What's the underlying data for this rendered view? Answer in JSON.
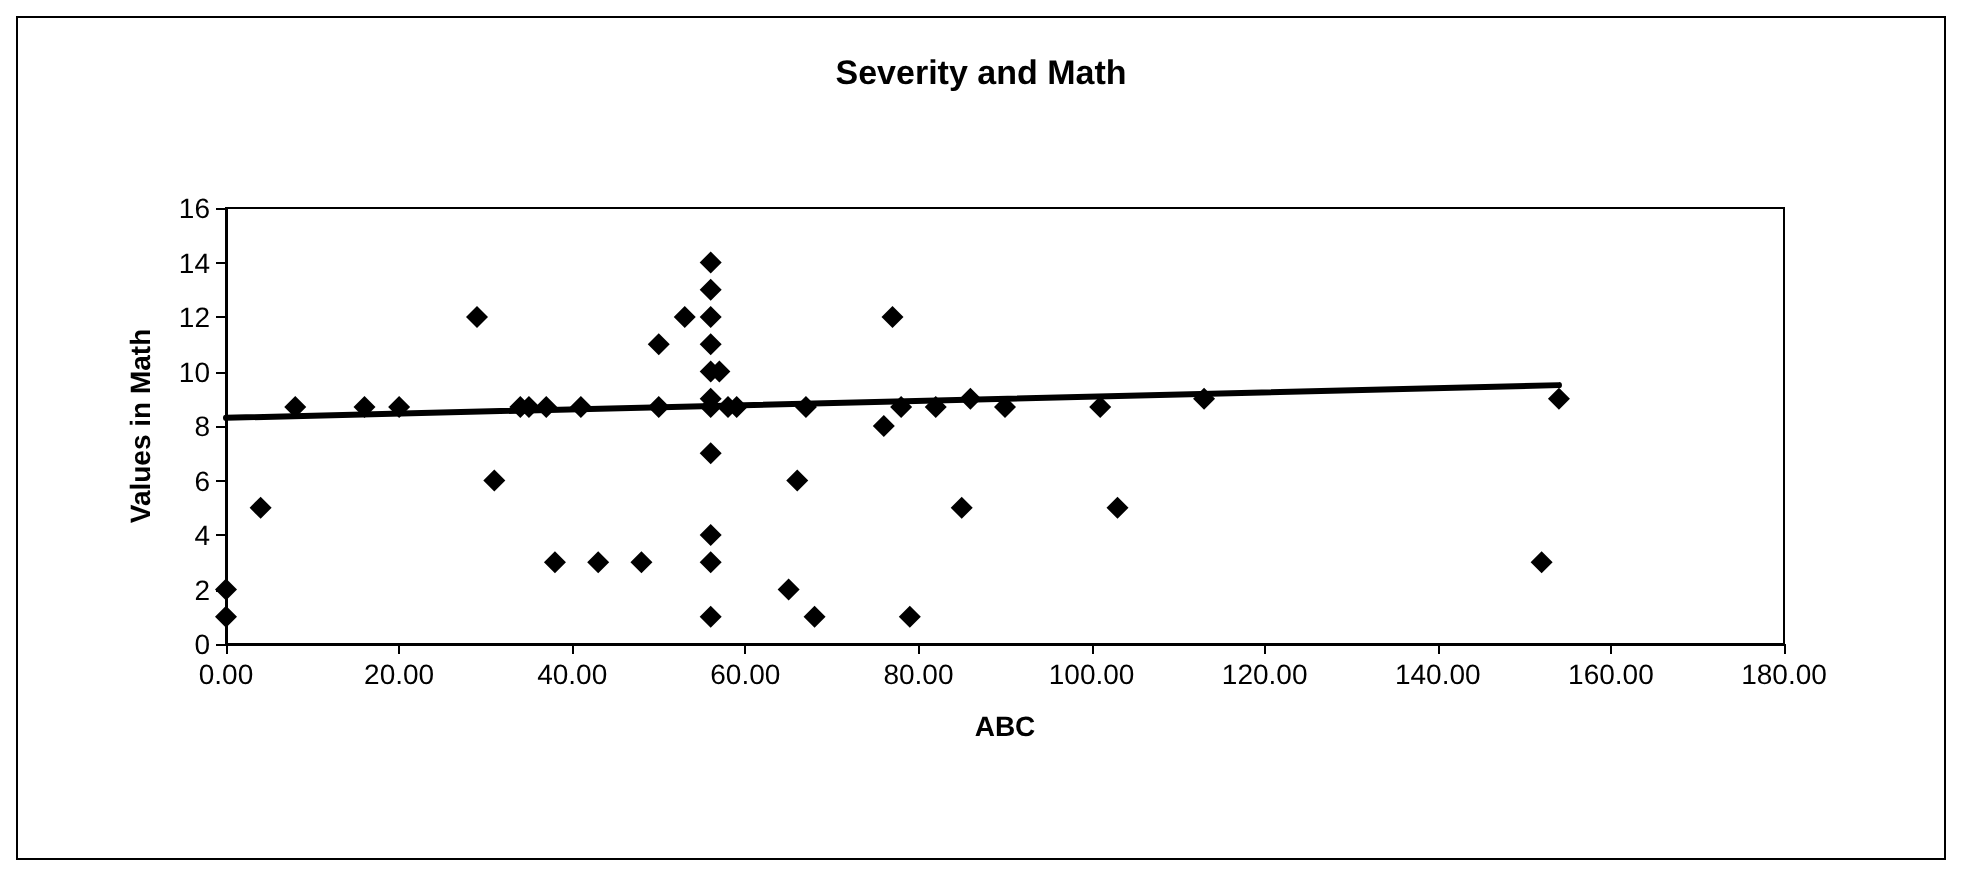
{
  "chart_data": {
    "type": "scatter",
    "title": "Severity and Math",
    "xlabel": "ABC",
    "ylabel": "Values in Math",
    "marker": "diamond",
    "grid": false,
    "x": [
      0,
      0,
      4,
      8,
      16,
      20,
      29,
      31,
      34,
      35,
      37,
      38,
      41,
      43,
      48,
      50,
      50,
      53,
      56,
      56,
      56,
      56,
      56,
      56,
      56,
      56,
      56,
      56,
      56,
      57,
      58,
      59,
      65,
      66,
      67,
      68,
      76,
      77,
      78,
      79,
      82,
      85,
      86,
      90,
      101,
      103,
      113,
      152,
      154
    ],
    "series": [
      {
        "color": "#000000",
        "values": [
          2,
          1,
          5,
          8.7,
          8.7,
          8.7,
          12,
          6,
          8.7,
          8.7,
          8.7,
          3,
          8.7,
          3,
          3,
          11,
          8.7,
          12,
          14,
          13,
          12,
          11,
          10,
          9,
          8.7,
          7,
          4,
          3,
          1,
          10,
          8.7,
          8.7,
          2,
          6,
          8.7,
          1,
          8,
          12,
          8.7,
          1,
          8.7,
          5,
          9,
          8.7,
          8.7,
          5,
          9,
          3,
          9
        ]
      },
      {
        "type": "line",
        "color": "#000000",
        "x": [
          0,
          154
        ],
        "values": [
          8.3,
          9.5
        ],
        "marker": "none"
      }
    ],
    "xlim": [
      0,
      180
    ],
    "xticks": [
      {
        "value": 0,
        "label": "0.00"
      },
      {
        "value": 20,
        "label": "20.00"
      },
      {
        "value": 40,
        "label": "40.00"
      },
      {
        "value": 60,
        "label": "60.00"
      },
      {
        "value": 80,
        "label": "80.00"
      },
      {
        "value": 100,
        "label": "100.00"
      },
      {
        "value": 120,
        "label": "120.00"
      },
      {
        "value": 140,
        "label": "140.00"
      },
      {
        "value": 160,
        "label": "160.00"
      },
      {
        "value": 180,
        "label": "180.00"
      }
    ],
    "ylim": [
      0,
      16
    ],
    "yticks": [
      0,
      2,
      4,
      6,
      8,
      10,
      12,
      14,
      16
    ]
  }
}
